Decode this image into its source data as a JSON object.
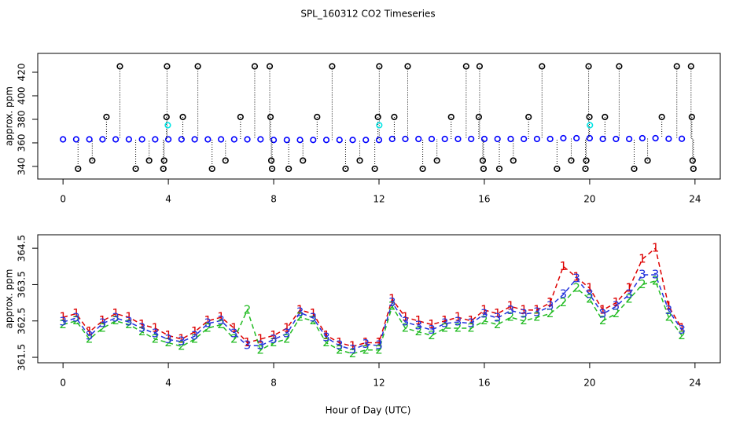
{
  "chart_data": [
    {
      "type": "scatter",
      "title": "SPL_160312  CO2 Timeseries",
      "ylabel": "approx. ppm",
      "xlim": [
        -0.96,
        24.96
      ],
      "xticks": [
        0,
        4,
        8,
        12,
        16,
        20,
        24
      ],
      "ylim": [
        329.3,
        436
      ],
      "yticks": [
        340,
        360,
        380,
        400,
        420
      ],
      "series": [
        {
          "color": "#0000ff",
          "x": [
            0,
            0.5,
            1,
            1.5,
            2,
            2.5,
            3,
            3.5,
            4,
            4.5,
            5,
            5.5,
            6,
            6.5,
            7,
            7.5,
            8,
            8.5,
            9,
            9.5,
            10,
            10.5,
            11,
            11.5,
            12,
            12.5,
            13,
            13.5,
            14,
            14.5,
            15,
            15.5,
            16,
            16.5,
            17,
            17.5,
            18,
            18.5,
            19,
            19.5,
            20,
            20.5,
            21,
            21.5,
            22,
            22.5,
            23,
            23.5
          ],
          "values": [
            363,
            363,
            363,
            363,
            363,
            363,
            363,
            363,
            363,
            363,
            363,
            363,
            363,
            363,
            363,
            363,
            362.5,
            362.5,
            362.5,
            362.5,
            362.5,
            362.5,
            362.5,
            362.5,
            362.5,
            363.3,
            363.3,
            363.3,
            363.3,
            363.3,
            363.3,
            363.3,
            363.3,
            363.3,
            363.3,
            363.3,
            363.3,
            363.3,
            364,
            364,
            364,
            363.3,
            363.3,
            363.3,
            364,
            364,
            363.5,
            363.5
          ]
        },
        {
          "color": "#000000",
          "drops": true,
          "x": [
            2.16,
            3.95,
            5.12,
            7.28,
            7.85,
            10.22,
            12.01,
            13.09,
            15.31,
            15.82,
            18.19,
            19.96,
            21.12,
            23.31,
            23.85,
            1.65,
            3.93,
            4.55,
            6.74,
            7.88,
            9.65,
            11.96,
            12.58,
            14.74,
            15.79,
            17.68,
            19.99,
            20.58,
            22.74,
            23.88,
            0.57,
            2.76,
            3.81,
            5.66,
            7.94,
            8.57,
            10.73,
            11.84,
            13.66,
            15.97,
            16.57,
            18.76,
            19.84,
            21.69,
            23.94,
            1.11,
            3.27,
            3.84,
            6.17,
            7.91,
            9.11,
            11.27,
            14.2,
            15.94,
            17.1,
            19.3,
            19.87,
            22.2,
            23.91
          ],
          "values": [
            425,
            425,
            425,
            425,
            425,
            425,
            425,
            425,
            425,
            425,
            425,
            425,
            425,
            425,
            425,
            382,
            382,
            382,
            382,
            382,
            382,
            382,
            382,
            382,
            382,
            382,
            382,
            382,
            382,
            382,
            338,
            338,
            338,
            338,
            338,
            338,
            338,
            338,
            338,
            338,
            338,
            338,
            338,
            338,
            338,
            345,
            345,
            345,
            345,
            345,
            345,
            345,
            345,
            345,
            345,
            345,
            345,
            345,
            345
          ]
        },
        {
          "color": "#00e5e5",
          "x": [
            3.98,
            12.01,
            20.01
          ],
          "values": [
            375,
            375,
            375
          ]
        }
      ]
    },
    {
      "type": "line",
      "ylabel": "approx. ppm",
      "xlabel": "Hour of Day (UTC)",
      "xlim": [
        -0.96,
        24.96
      ],
      "xticks": [
        0,
        4,
        8,
        12,
        16,
        20,
        24
      ],
      "ylim": [
        361.35,
        364.87
      ],
      "yticks": [
        361.5,
        362.5,
        363.5,
        364.5
      ],
      "x": [
        0,
        0.5,
        1,
        1.5,
        2,
        2.5,
        3,
        3.5,
        4,
        4.5,
        5,
        5.5,
        6,
        6.5,
        7,
        7.5,
        8,
        8.5,
        9,
        9.5,
        10,
        10.5,
        11,
        11.5,
        12,
        12.5,
        13,
        13.5,
        14,
        14.5,
        15,
        15.5,
        16,
        16.5,
        17,
        17.5,
        18,
        18.5,
        19,
        19.5,
        20,
        20.5,
        21,
        21.5,
        22,
        22.5,
        23,
        23.5
      ],
      "series": [
        {
          "name": "1",
          "color": "#dd0000",
          "values": [
            362.6,
            362.7,
            362.2,
            362.5,
            362.7,
            362.6,
            362.4,
            362.3,
            362.1,
            362.0,
            362.2,
            362.5,
            362.6,
            362.3,
            361.9,
            362.0,
            362.1,
            362.3,
            362.8,
            362.7,
            362.1,
            361.9,
            361.8,
            361.9,
            361.9,
            363.1,
            362.6,
            362.5,
            362.4,
            362.5,
            362.6,
            362.5,
            362.8,
            362.7,
            362.9,
            362.8,
            362.8,
            363.0,
            364.0,
            363.7,
            363.4,
            362.8,
            363.0,
            363.4,
            364.2,
            364.5,
            362.9,
            362.3
          ]
        },
        {
          "name": "2",
          "color": "#22bb22",
          "values": [
            362.4,
            362.5,
            362.0,
            362.3,
            362.5,
            362.4,
            362.2,
            362.0,
            361.9,
            361.8,
            362.0,
            362.3,
            362.4,
            362.0,
            362.8,
            361.7,
            361.9,
            362.0,
            362.6,
            362.5,
            361.9,
            361.7,
            361.6,
            361.7,
            361.7,
            362.9,
            362.3,
            362.2,
            362.1,
            362.3,
            362.3,
            362.3,
            362.5,
            362.4,
            362.6,
            362.5,
            362.6,
            362.7,
            363.0,
            363.4,
            363.1,
            362.5,
            362.7,
            363.1,
            363.5,
            363.6,
            362.6,
            362.1
          ]
        },
        {
          "name": "3",
          "color": "#2233dd",
          "values": [
            362.47,
            362.58,
            362.08,
            362.43,
            362.58,
            362.47,
            362.3,
            362.15,
            361.99,
            361.93,
            362.08,
            362.43,
            362.51,
            362.15,
            361.82,
            361.82,
            361.99,
            362.15,
            362.73,
            362.58,
            362.04,
            361.82,
            361.71,
            361.86,
            361.82,
            363.0,
            362.47,
            362.36,
            362.25,
            362.43,
            362.47,
            362.43,
            362.69,
            362.58,
            362.79,
            362.69,
            362.73,
            362.9,
            363.23,
            363.66,
            363.23,
            362.69,
            362.9,
            363.23,
            363.77,
            363.77,
            362.79,
            362.25
          ]
        }
      ]
    }
  ]
}
